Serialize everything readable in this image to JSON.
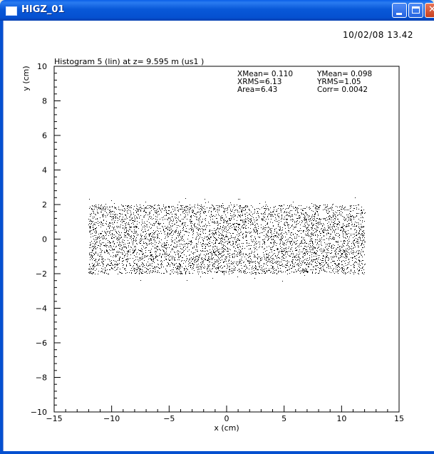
{
  "window": {
    "title": "HIGZ_01"
  },
  "header": {
    "datetime": "10/02/08  13.42"
  },
  "chart_data": {
    "type": "scatter",
    "title": "Histogram  5 (lin) at z=  9.595 m (us1 )",
    "xlabel": "x (cm)",
    "ylabel": "y (cm)",
    "xlim": [
      -15,
      15
    ],
    "ylim": [
      -10,
      10
    ],
    "x_ticks": [
      "-15",
      "-10",
      "-5",
      "0",
      "5",
      "10",
      "15"
    ],
    "y_ticks": [
      "-10",
      "-8",
      "-6",
      "-4",
      "-2",
      "0",
      "2",
      "4",
      "6",
      "8",
      "10"
    ],
    "grid": false,
    "distribution": {
      "x_range": [
        -12.0,
        12.0
      ],
      "y_range": [
        -2.0,
        2.0
      ],
      "point_count": 9000
    },
    "stats": [
      {
        "label": "XMean=",
        "value": "0.110"
      },
      {
        "label": "YMean=",
        "value": "0.098"
      },
      {
        "label": "XRMS=",
        "value": "6.13"
      },
      {
        "label": "YRMS=",
        "value": "1.05"
      },
      {
        "label": "Area=",
        "value": "6.43"
      },
      {
        "label": "Corr=",
        "value": "0.0042"
      }
    ]
  }
}
